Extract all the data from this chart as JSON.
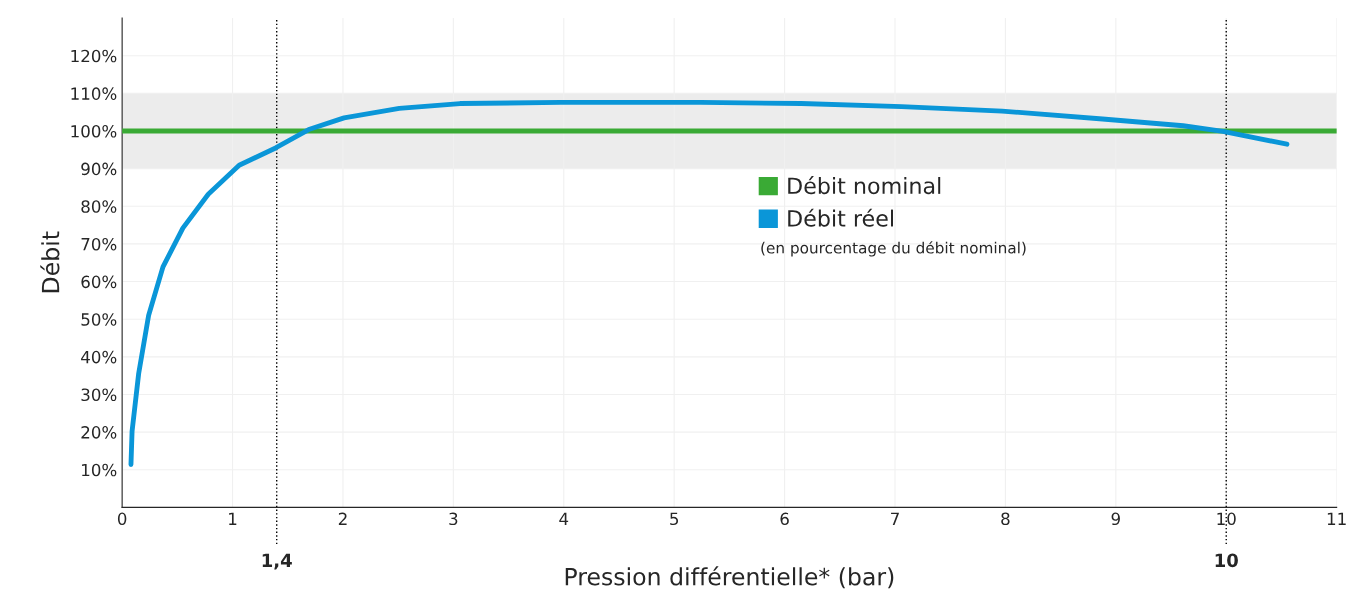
{
  "chart_data": {
    "type": "line",
    "xlabel": "Pression différentielle* (bar)",
    "ylabel": "Débit",
    "xlim": [
      0,
      11
    ],
    "ylim": [
      0,
      130
    ],
    "xticks": [
      0,
      1,
      2,
      3,
      4,
      5,
      6,
      7,
      8,
      9,
      10,
      11
    ],
    "yticks": [
      {
        "value": 10,
        "label": "10%"
      },
      {
        "value": 20,
        "label": "20%"
      },
      {
        "value": 30,
        "label": "30%"
      },
      {
        "value": 40,
        "label": "40%"
      },
      {
        "value": 50,
        "label": "50%"
      },
      {
        "value": 60,
        "label": "60%"
      },
      {
        "value": 70,
        "label": "70%"
      },
      {
        "value": 80,
        "label": "80%"
      },
      {
        "value": 90,
        "label": "90%"
      },
      {
        "value": 100,
        "label": "100%"
      },
      {
        "value": 110,
        "label": "110%"
      },
      {
        "value": 120,
        "label": "120%"
      }
    ],
    "grid": true,
    "legend": "center",
    "marker": "none",
    "series": [
      {
        "name": "Débit nominal",
        "color": "#3aaa35",
        "x": [
          0,
          11
        ],
        "values": [
          100,
          100
        ]
      },
      {
        "name": "Débit réel",
        "color": "#0a96d8",
        "x": [
          0.08,
          0.09,
          0.15,
          0.24,
          0.37,
          0.55,
          0.78,
          1.06,
          1.39,
          1.69,
          2.01,
          2.51,
          3.06,
          3.97,
          5.24,
          6.15,
          7.06,
          7.97,
          8.88,
          9.61,
          9.97,
          10.55
        ],
        "values": [
          11.4,
          20.2,
          35.6,
          51.0,
          63.9,
          74.2,
          83.2,
          90.9,
          95.5,
          100.4,
          103.5,
          106.0,
          107.3,
          107.6,
          107.6,
          107.3,
          106.5,
          105.3,
          103.2,
          101.4,
          99.9,
          96.5
        ]
      }
    ],
    "ref_lines": [
      {
        "axis": "x",
        "value": 1.4,
        "label": "1,4",
        "color": "#000000",
        "line_style": "dotted"
      },
      {
        "axis": "x",
        "value": 10,
        "label": "10",
        "color": "#000000",
        "line_style": "dotted"
      }
    ],
    "bands": [
      {
        "axis": "y",
        "from": 90,
        "to": 110,
        "color": "#ececec"
      }
    ],
    "annotations": [
      "(en pourcentage du débit nominal)"
    ]
  }
}
